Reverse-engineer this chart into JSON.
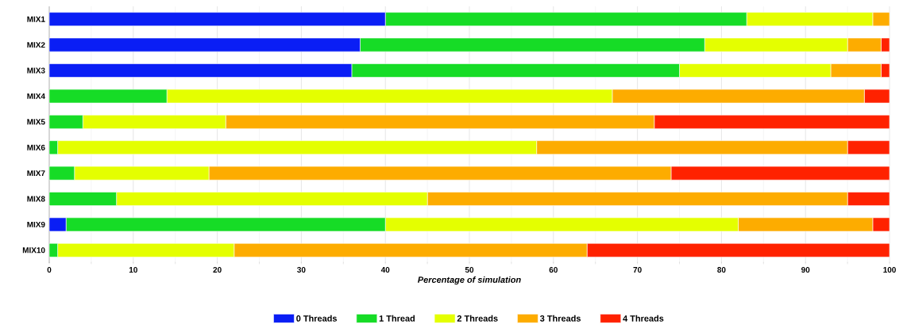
{
  "chart_data": {
    "type": "bar",
    "orientation": "horizontal",
    "stacked": true,
    "xlabel": "Percentage of simulation",
    "categories": [
      "MIX1",
      "MIX2",
      "MIX3",
      "MIX4",
      "MIX5",
      "MIX6",
      "MIX7",
      "MIX8",
      "MIX9",
      "MIX10"
    ],
    "series": [
      {
        "name": "0 Threads",
        "color": "#0a1ef5",
        "values": [
          40,
          37,
          36,
          0,
          0,
          0,
          0,
          0,
          2,
          0
        ]
      },
      {
        "name": "1 Thread",
        "color": "#16dc26",
        "values": [
          43,
          41,
          39,
          14,
          4,
          1,
          3,
          8,
          38,
          1
        ]
      },
      {
        "name": "2 Threads",
        "color": "#e4ff00",
        "values": [
          15,
          17,
          18,
          53,
          17,
          57,
          16,
          37,
          42,
          21
        ]
      },
      {
        "name": "3 Threads",
        "color": "#fdac00",
        "values": [
          2,
          4,
          6,
          30,
          51,
          37,
          55,
          50,
          16,
          42
        ]
      },
      {
        "name": "4 Threads",
        "color": "#ff2200",
        "values": [
          0,
          1,
          1,
          3,
          28,
          5,
          26,
          5,
          2,
          36
        ]
      }
    ],
    "xlim": [
      0,
      100
    ],
    "xticks": [
      0,
      10,
      20,
      30,
      40,
      50,
      60,
      70,
      80,
      90,
      100
    ],
    "grid": "x",
    "legend": "bottom"
  }
}
